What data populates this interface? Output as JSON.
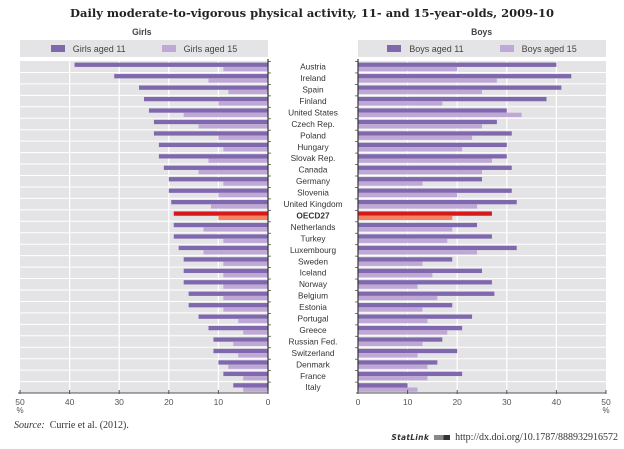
{
  "chart_data": [
    {
      "type": "bar",
      "orientation": "horizontal",
      "title": "Daily moderate-to-vigorous physical activity, 11- and 15-year-olds, 2009-10",
      "panel_title": "Girls",
      "xlabel": "%",
      "xlim": [
        50,
        0
      ],
      "xticks": [
        "50",
        "40",
        "30",
        "20",
        "10",
        "0"
      ],
      "grid": true,
      "legend_placement": "top",
      "categories": [
        "Austria",
        "Ireland",
        "Spain",
        "Finland",
        "United States",
        "Czech Rep.",
        "Poland",
        "Hungary",
        "Slovak Rep.",
        "Canada",
        "Germany",
        "Slovenia",
        "United Kingdom",
        "OECD27",
        "Netherlands",
        "Turkey",
        "Luxembourg",
        "Sweden",
        "Iceland",
        "Norway",
        "Belgium",
        "Estonia",
        "Portugal",
        "Greece",
        "Russian Fed.",
        "Switzerland",
        "Denmark",
        "France",
        "Italy"
      ],
      "highlight_category": "OECD27",
      "series": [
        {
          "name": "Girls aged 11",
          "color": "#7f68ad",
          "values": [
            39,
            31,
            26,
            25,
            24,
            23,
            23,
            22,
            22,
            21,
            20,
            20,
            19.5,
            19,
            19,
            19,
            18,
            17,
            17,
            17,
            16,
            16,
            14,
            12,
            11,
            11,
            10,
            9,
            7
          ]
        },
        {
          "name": "Girls aged 15",
          "color": "#bfa8d6",
          "values": [
            9,
            12,
            8,
            10,
            17,
            14,
            10,
            9,
            12,
            14,
            9,
            10,
            11.5,
            10,
            13,
            9,
            13,
            9,
            9,
            9,
            9,
            9,
            6,
            5,
            7,
            6,
            8,
            5,
            5
          ]
        }
      ]
    },
    {
      "type": "bar",
      "orientation": "horizontal",
      "panel_title": "Boys",
      "xlabel": "%",
      "xlim": [
        0,
        50
      ],
      "xticks": [
        "0",
        "10",
        "20",
        "30",
        "40",
        "50"
      ],
      "grid": true,
      "legend_placement": "top",
      "categories": [
        "Austria",
        "Ireland",
        "Spain",
        "Finland",
        "United States",
        "Czech Rep.",
        "Poland",
        "Hungary",
        "Slovak Rep.",
        "Canada",
        "Germany",
        "Slovenia",
        "United Kingdom",
        "OECD27",
        "Netherlands",
        "Turkey",
        "Luxembourg",
        "Sweden",
        "Iceland",
        "Norway",
        "Belgium",
        "Estonia",
        "Portugal",
        "Greece",
        "Russian Fed.",
        "Switzerland",
        "Denmark",
        "France",
        "Italy"
      ],
      "highlight_category": "OECD27",
      "series": [
        {
          "name": "Boys aged 11",
          "color": "#7f68ad",
          "values": [
            40,
            43,
            41,
            38,
            30,
            28,
            31,
            30,
            30,
            31,
            25,
            31,
            32,
            27,
            24,
            27,
            32,
            19,
            25,
            27,
            27.5,
            19,
            23,
            21,
            17,
            20,
            16,
            21,
            10
          ]
        },
        {
          "name": "Boys aged 15",
          "color": "#bfa8d6",
          "values": [
            20,
            28,
            25,
            17,
            33,
            25,
            23,
            21,
            27,
            25,
            13,
            20,
            24,
            19,
            19,
            18,
            24,
            13,
            15,
            12,
            16,
            13,
            14,
            18,
            13,
            12,
            14,
            14,
            12
          ]
        }
      ]
    }
  ],
  "highlight_colors": {
    "aged_11": "#d7191c",
    "aged_15": "#f4845f"
  },
  "header": {
    "title": "Daily moderate-to-vigorous physical activity, 11- and 15-year-olds, 2009-10",
    "girls_title": "Girls",
    "boys_title": "Boys"
  },
  "legend": {
    "girls_11": "Girls aged 11",
    "girls_15": "Girls aged 15",
    "boys_11": "Boys aged 11",
    "boys_15": "Boys aged 15"
  },
  "axis_unit": "%",
  "footer": {
    "source_label": "Source:",
    "source_text": "Currie et al. (2012).",
    "statlink_name": "StatLink",
    "statlink_url": "http://dx.doi.org/10.1787/888932916572"
  }
}
